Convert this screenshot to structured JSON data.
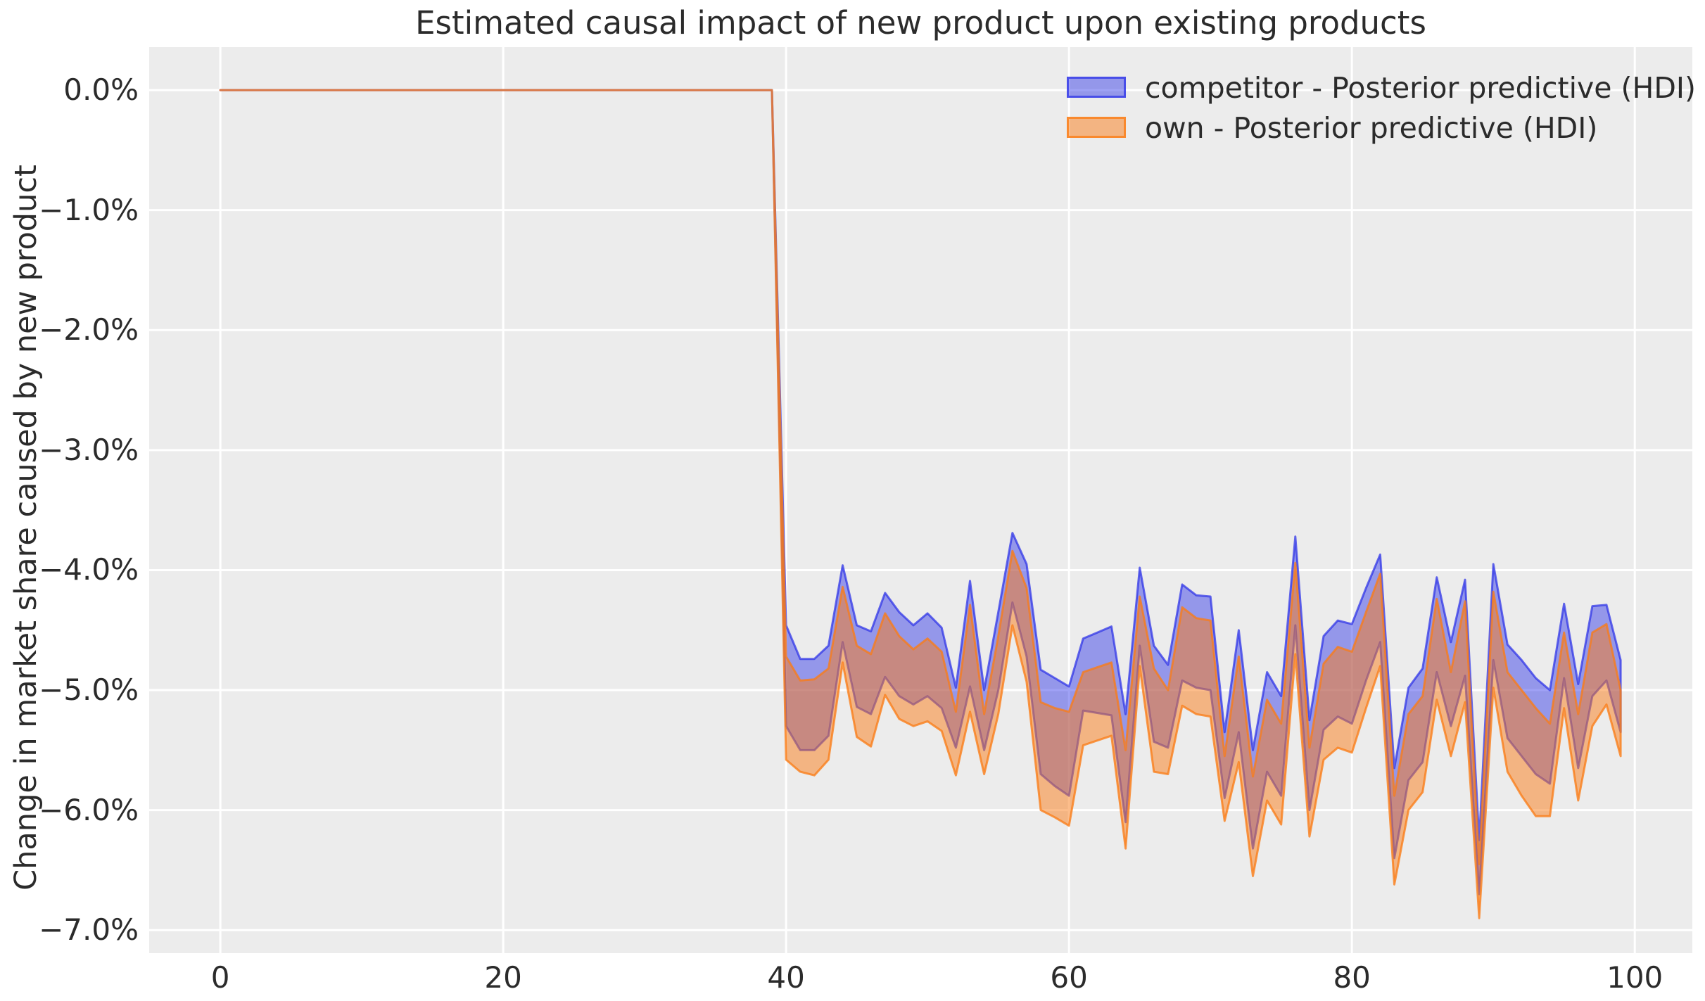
{
  "chart_data": {
    "type": "area",
    "title": "Estimated causal impact of new product upon existing products",
    "ylabel": "Change in market share caused by new product",
    "xlabel": "",
    "grid": true,
    "legend_position": "upper right",
    "x_axis": {
      "values": [
        0,
        20,
        40,
        60,
        80,
        100
      ],
      "labels": [
        "0",
        "20",
        "40",
        "60",
        "80",
        "100"
      ],
      "lim": [
        -5.03,
        104.07
      ]
    },
    "y_axis": {
      "values": [
        0,
        -1,
        -2,
        -3,
        -4,
        -5,
        -6,
        -7
      ],
      "labels": [
        "0.0%",
        "−1.0%",
        "−2.0%",
        "−3.0%",
        "−4.0%",
        "−5.0%",
        "−6.0%",
        "−7.0%"
      ],
      "lim": [
        -7.192,
        0.358
      ],
      "unit": "percent"
    },
    "intervention_start_x": 40,
    "x": [
      0,
      1,
      2,
      3,
      4,
      5,
      6,
      7,
      8,
      9,
      10,
      11,
      12,
      13,
      14,
      15,
      16,
      17,
      18,
      19,
      20,
      21,
      22,
      23,
      24,
      25,
      26,
      27,
      28,
      29,
      30,
      31,
      32,
      33,
      34,
      35,
      36,
      37,
      38,
      39,
      40,
      41,
      42,
      43,
      44,
      45,
      46,
      47,
      48,
      49,
      50,
      51,
      52,
      53,
      54,
      55,
      56,
      57,
      58,
      59,
      60,
      61,
      62,
      63,
      64,
      65,
      66,
      67,
      68,
      69,
      70,
      71,
      72,
      73,
      74,
      75,
      76,
      77,
      78,
      79,
      80,
      81,
      82,
      83,
      84,
      85,
      86,
      87,
      88,
      89,
      90,
      91,
      92,
      93,
      94,
      95,
      96,
      97,
      98,
      99
    ],
    "series": [
      {
        "name": "competitor - Posterior predictive (HDI)",
        "kind": "hdi_band",
        "upper": [
          0,
          0,
          0,
          0,
          0,
          0,
          0,
          0,
          0,
          0,
          0,
          0,
          0,
          0,
          0,
          0,
          0,
          0,
          0,
          0,
          0,
          0,
          0,
          0,
          0,
          0,
          0,
          0,
          0,
          0,
          0,
          0,
          0,
          0,
          0,
          0,
          0,
          0,
          0,
          0,
          -4.46,
          -4.74,
          -4.74,
          -4.63,
          -3.96,
          -4.46,
          -4.51,
          -4.19,
          -4.35,
          -4.46,
          -4.36,
          -4.48,
          -4.98,
          -4.09,
          -5.0,
          -4.35,
          -3.69,
          -3.95,
          -4.83,
          -4.9,
          -4.97,
          -4.57,
          -4.52,
          -4.47,
          -5.2,
          -3.98,
          -4.63,
          -4.79,
          -4.12,
          -4.21,
          -4.22,
          -5.35,
          -4.5,
          -5.5,
          -4.85,
          -5.05,
          -3.72,
          -5.25,
          -4.55,
          -4.42,
          -4.45,
          -4.15,
          -3.87,
          -5.65,
          -4.98,
          -4.82,
          -4.06,
          -4.6,
          -4.08,
          -6.25,
          -3.95,
          -4.62,
          -4.75,
          -4.9,
          -5.0,
          -4.28,
          -4.95,
          -4.3,
          -4.29,
          -4.75
        ],
        "lower": [
          0,
          0,
          0,
          0,
          0,
          0,
          0,
          0,
          0,
          0,
          0,
          0,
          0,
          0,
          0,
          0,
          0,
          0,
          0,
          0,
          0,
          0,
          0,
          0,
          0,
          0,
          0,
          0,
          0,
          0,
          0,
          0,
          0,
          0,
          0,
          0,
          0,
          0,
          0,
          0,
          -5.3,
          -5.5,
          -5.5,
          -5.38,
          -4.6,
          -5.14,
          -5.2,
          -4.89,
          -5.05,
          -5.12,
          -5.05,
          -5.15,
          -5.48,
          -4.97,
          -5.5,
          -5.0,
          -4.27,
          -4.72,
          -5.7,
          -5.8,
          -5.88,
          -5.17,
          -5.19,
          -5.21,
          -6.1,
          -4.63,
          -5.43,
          -5.48,
          -4.92,
          -4.98,
          -5.0,
          -5.9,
          -5.35,
          -6.32,
          -5.68,
          -5.88,
          -4.46,
          -6.0,
          -5.33,
          -5.22,
          -5.28,
          -4.92,
          -4.6,
          -6.4,
          -5.75,
          -5.6,
          -4.85,
          -5.3,
          -4.88,
          -6.7,
          -4.75,
          -5.4,
          -5.55,
          -5.7,
          -5.78,
          -4.9,
          -5.65,
          -5.05,
          -4.92,
          -5.35
        ]
      },
      {
        "name": "own - Posterior predictive (HDI)",
        "kind": "hdi_band",
        "upper": [
          0,
          0,
          0,
          0,
          0,
          0,
          0,
          0,
          0,
          0,
          0,
          0,
          0,
          0,
          0,
          0,
          0,
          0,
          0,
          0,
          0,
          0,
          0,
          0,
          0,
          0,
          0,
          0,
          0,
          0,
          0,
          0,
          0,
          0,
          0,
          0,
          0,
          0,
          0,
          0,
          -4.72,
          -4.92,
          -4.91,
          -4.82,
          -4.14,
          -4.63,
          -4.7,
          -4.36,
          -4.55,
          -4.66,
          -4.57,
          -4.68,
          -5.18,
          -4.29,
          -5.2,
          -4.55,
          -3.84,
          -4.15,
          -5.1,
          -5.15,
          -5.18,
          -4.85,
          -4.81,
          -4.77,
          -5.5,
          -4.22,
          -4.82,
          -5.0,
          -4.31,
          -4.4,
          -4.42,
          -5.55,
          -4.72,
          -5.72,
          -5.08,
          -5.28,
          -3.94,
          -5.48,
          -4.78,
          -4.64,
          -4.68,
          -4.35,
          -4.03,
          -5.88,
          -5.2,
          -5.05,
          -4.24,
          -4.85,
          -4.26,
          -6.45,
          -4.18,
          -4.85,
          -5.0,
          -5.15,
          -5.28,
          -4.52,
          -5.2,
          -4.52,
          -4.45,
          -5.0
        ],
        "lower": [
          0,
          0,
          0,
          0,
          0,
          0,
          0,
          0,
          0,
          0,
          0,
          0,
          0,
          0,
          0,
          0,
          0,
          0,
          0,
          0,
          0,
          0,
          0,
          0,
          0,
          0,
          0,
          0,
          0,
          0,
          0,
          0,
          0,
          0,
          0,
          0,
          0,
          0,
          0,
          0,
          -5.58,
          -5.68,
          -5.71,
          -5.58,
          -4.77,
          -5.39,
          -5.47,
          -5.04,
          -5.24,
          -5.3,
          -5.26,
          -5.34,
          -5.71,
          -5.18,
          -5.7,
          -5.2,
          -4.46,
          -4.93,
          -6.0,
          -6.06,
          -6.13,
          -5.46,
          -5.42,
          -5.38,
          -6.32,
          -4.8,
          -5.68,
          -5.7,
          -5.13,
          -5.2,
          -5.22,
          -6.09,
          -5.6,
          -6.55,
          -5.92,
          -6.12,
          -4.7,
          -6.22,
          -5.58,
          -5.48,
          -5.52,
          -5.15,
          -4.8,
          -6.62,
          -6.0,
          -5.85,
          -5.08,
          -5.55,
          -5.1,
          -6.9,
          -4.98,
          -5.68,
          -5.88,
          -6.05,
          -6.05,
          -5.15,
          -5.92,
          -5.3,
          -5.12,
          -5.55
        ]
      }
    ],
    "legend": [
      {
        "label": "competitor - Posterior predictive (HDI)"
      },
      {
        "label": "own - Posterior predictive (HDI)"
      }
    ]
  },
  "colors": {
    "figure_bg": "#ffffff",
    "axes_bg": "#ececec",
    "grid": "#ffffff",
    "text": "#2b2b2b",
    "competitor_fill": "rgba(43,48,232,0.45)",
    "competitor_edge": "rgba(43,48,232,0.72)",
    "own_fill": "rgba(250,124,23,0.50)",
    "own_edge": "rgba(250,124,23,0.78)"
  }
}
